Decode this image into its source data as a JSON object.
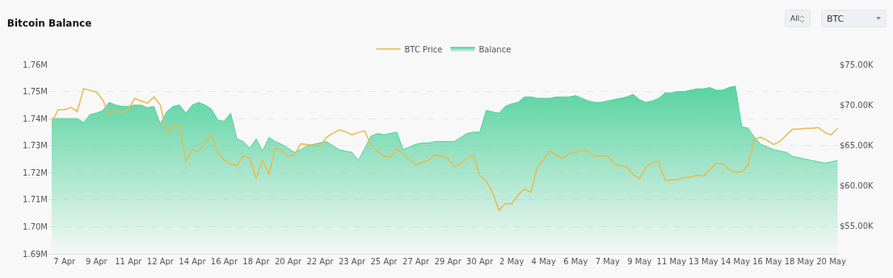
{
  "chart_data": {
    "type": "line",
    "title": "Bitcoin Balance",
    "annotations": [
      "All",
      "BTC"
    ],
    "categories": [
      null,
      null,
      "7 Apr",
      null,
      null,
      null,
      null,
      "9 Apr",
      null,
      null,
      null,
      null,
      "11 Apr",
      null,
      null,
      null,
      null,
      "12 Apr",
      null,
      null,
      null,
      null,
      "14 Apr",
      null,
      null,
      null,
      null,
      "16 Apr",
      null,
      null,
      null,
      null,
      "18 Apr",
      null,
      null,
      null,
      null,
      "20 Apr",
      null,
      null,
      null,
      null,
      "22 Apr",
      null,
      null,
      null,
      null,
      "23 Apr",
      null,
      null,
      null,
      null,
      "25 Apr",
      null,
      null,
      null,
      null,
      "27 Apr",
      null,
      null,
      null,
      null,
      "29 Apr",
      null,
      null,
      null,
      null,
      "30 Apr",
      null,
      null,
      null,
      null,
      "2 May",
      null,
      null,
      null,
      null,
      "4 May",
      null,
      null,
      null,
      null,
      "6 May",
      null,
      null,
      null,
      null,
      "7 May",
      null,
      null,
      null,
      null,
      "9 May",
      null,
      null,
      null,
      null,
      "11 May",
      null,
      null,
      null,
      null,
      "13 May",
      null,
      null,
      null,
      null,
      "14 May",
      null,
      null,
      null,
      null,
      "16 May",
      null,
      null,
      null,
      null,
      "18 May",
      null,
      null,
      null,
      null,
      "20 May",
      null
    ],
    "ylim": [
      1690000,
      1760000
    ],
    "yticks": [
      {
        "value": 1690000,
        "label": "1.69M"
      },
      {
        "value": 1700000,
        "label": "1.70M"
      },
      {
        "value": 1710000,
        "label": "1.71M"
      },
      {
        "value": 1720000,
        "label": "1.72M"
      },
      {
        "value": 1730000,
        "label": "1.73M"
      },
      {
        "value": 1740000,
        "label": "1.74M"
      },
      {
        "value": 1750000,
        "label": "1.75M"
      },
      {
        "value": 1760000,
        "label": "1.76M"
      }
    ],
    "y2lim": [
      51600,
      75000
    ],
    "y2ticks": [
      {
        "value": 55000,
        "label": "$55.00K"
      },
      {
        "value": 60000,
        "label": "$60.00K"
      },
      {
        "value": 65000,
        "label": "$65.00K"
      },
      {
        "value": 70000,
        "label": "$70.00K"
      },
      {
        "value": 75000,
        "label": "$75.00K"
      }
    ],
    "grid": "y",
    "legend": "top",
    "marker": "none",
    "line_style": "solid",
    "series": [
      {
        "name": "BTC Price",
        "type": "line",
        "axis": "y2",
        "color": "#e8b94a",
        "values": [
          67800,
          69400,
          69400,
          69700,
          69200,
          72000,
          71800,
          71600,
          70600,
          68900,
          69300,
          69100,
          69500,
          70800,
          70500,
          70200,
          71000,
          70000,
          66500,
          67300,
          67400,
          63000,
          64500,
          64200,
          65300,
          66300,
          64000,
          63200,
          62700,
          62500,
          63700,
          63400,
          60900,
          63200,
          61400,
          64700,
          64400,
          63700,
          63800,
          65200,
          65100,
          65000,
          64900,
          66000,
          66500,
          66900,
          66700,
          66300,
          66600,
          66800,
          65000,
          64200,
          63700,
          63500,
          64600,
          64000,
          63200,
          62600,
          62900,
          63200,
          63800,
          63700,
          63400,
          62400,
          62700,
          63400,
          63800,
          61300,
          60600,
          59200,
          57000,
          57800,
          57800,
          58900,
          59600,
          59200,
          62300,
          63300,
          64300,
          63800,
          63400,
          64000,
          64100,
          64400,
          64300,
          63700,
          63700,
          63700,
          62700,
          62500,
          62300,
          61400,
          60900,
          62300,
          62900,
          63000,
          60700,
          60700,
          60800,
          61000,
          61100,
          61300,
          61200,
          62000,
          62800,
          62700,
          62000,
          61700,
          61700,
          62600,
          65800,
          66000,
          65600,
          65100,
          65500,
          66300,
          67000,
          67000,
          67100,
          67100,
          67200,
          66600,
          66300,
          67100
        ]
      },
      {
        "name": "Balance",
        "type": "area",
        "color": "#4fd19c",
        "values": [
          1740000,
          1740000,
          1740000,
          1740000,
          1740000,
          1738500,
          1741500,
          1742000,
          1743000,
          1746000,
          1745000,
          1744500,
          1744500,
          1745000,
          1745000,
          1744000,
          1744500,
          1738000,
          1742500,
          1744500,
          1745000,
          1742000,
          1745000,
          1746000,
          1745000,
          1743500,
          1739500,
          1739000,
          1742000,
          1732500,
          1731500,
          1729000,
          1732500,
          1728000,
          1733000,
          1731500,
          1730500,
          1729000,
          1727500,
          1728500,
          1730000,
          1730500,
          1731000,
          1731500,
          1730000,
          1728500,
          1728000,
          1727500,
          1724500,
          1729000,
          1733500,
          1734500,
          1734000,
          1734500,
          1735000,
          1728500,
          1729500,
          1730500,
          1731000,
          1731000,
          1731500,
          1731500,
          1731500,
          1731500,
          1733000,
          1734500,
          1735000,
          1735000,
          1743000,
          1742500,
          1742000,
          1744500,
          1745500,
          1746000,
          1748000,
          1748000,
          1747500,
          1747500,
          1747500,
          1748000,
          1748000,
          1748000,
          1748500,
          1747500,
          1746500,
          1746000,
          1746000,
          1746500,
          1747000,
          1747500,
          1748000,
          1749000,
          1747000,
          1746000,
          1746500,
          1747500,
          1749500,
          1749500,
          1750000,
          1750000,
          1750500,
          1751000,
          1751000,
          1751500,
          1750500,
          1750500,
          1751500,
          1752000,
          1737000,
          1736500,
          1733000,
          1730500,
          1729500,
          1728500,
          1728000,
          1727500,
          1726000,
          1725500,
          1725000,
          1724500,
          1724000,
          1723500,
          1724000,
          1724500
        ]
      }
    ]
  }
}
